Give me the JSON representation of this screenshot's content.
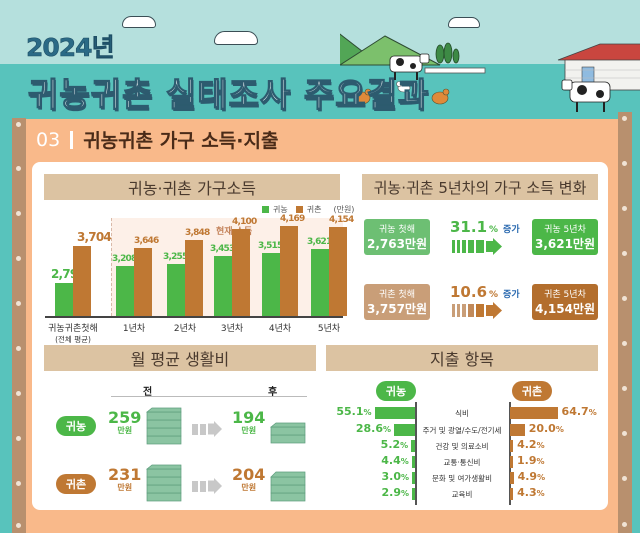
{
  "header": {
    "year": "2024년",
    "title": "귀농귀촌 실태조사 주요결과"
  },
  "section": {
    "number": "03",
    "title": "귀농귀촌 가구 소득·지출"
  },
  "colors": {
    "farm": "#4cb748",
    "rural": "#bf7833",
    "farm_light": "#6dbf73",
    "rural_light": "#c99e78",
    "rural_dark": "#b36e2d"
  },
  "income_panel": {
    "title": "귀농·귀촌 가구소득",
    "legend": {
      "farm": "귀농",
      "rural": "귀촌",
      "unit": "(만원)"
    },
    "current_label": "현재 소득",
    "first_year_label": "귀농귀촌첫해",
    "first_year_sub": "(전체 평균)"
  },
  "chart_data": {
    "type": "bar",
    "title": "귀농·귀촌 가구소득",
    "unit": "만원",
    "categories": [
      "귀농귀촌첫해 (전체 평균)",
      "1년차",
      "2년차",
      "3년차",
      "4년차",
      "5년차"
    ],
    "series": [
      {
        "name": "귀농",
        "values": [
          2796,
          3208,
          3255,
          3453,
          3515,
          3621
        ]
      },
      {
        "name": "귀촌",
        "values": [
          3704,
          3646,
          3848,
          4100,
          4169,
          4154
        ]
      }
    ],
    "value_labels": {
      "귀농": [
        "2,796",
        "3,208",
        "3,255",
        "3,453",
        "3,515",
        "3,621"
      ],
      "귀촌": [
        "3,704",
        "3,646",
        "3,848",
        "4,100",
        "4,169",
        "4,154"
      ]
    },
    "legend_position": "top-right",
    "annotation": "현재 소득",
    "ylim": [
      2000,
      4300
    ],
    "grid": false
  },
  "change_panel": {
    "title": "귀농·귀촌 5년차의 가구 소득 변화",
    "farm": {
      "from_label": "귀농 첫해",
      "from_value": "2,763만원",
      "pct": "31.1",
      "pct_sign": "%",
      "inc": "증가",
      "to_label": "귀농 5년차",
      "to_value": "3,621만원"
    },
    "rural": {
      "from_label": "귀촌 첫해",
      "from_value": "3,757만원",
      "pct": "10.6",
      "pct_sign": "%",
      "inc": "증가",
      "to_label": "귀촌 5년차",
      "to_value": "4,154만원"
    }
  },
  "living_panel": {
    "title": "월 평균 생활비",
    "before": "전",
    "after": "후",
    "unit": "만원",
    "rows": [
      {
        "label": "귀농",
        "before": "259",
        "after": "194"
      },
      {
        "label": "귀촌",
        "before": "231",
        "after": "204"
      }
    ]
  },
  "expense_panel": {
    "title": "지출 항목",
    "farm_label": "귀농",
    "rural_label": "귀촌",
    "items": [
      {
        "label": "식비",
        "farm": 55.1,
        "farm_text": "55.1",
        "rural": 64.7,
        "rural_text": "64.7"
      },
      {
        "label": "주거 및 광열/수도/전기세",
        "farm": 28.6,
        "farm_text": "28.6",
        "rural": 20.0,
        "rural_text": "20.0"
      },
      {
        "label": "건강 및 의료소비",
        "farm": 5.2,
        "farm_text": "5.2",
        "rural": 4.2,
        "rural_text": "4.2"
      },
      {
        "label": "교통·통신비",
        "farm": 4.4,
        "farm_text": "4.4",
        "rural": 1.9,
        "rural_text": "1.9"
      },
      {
        "label": "문화 및 여가생활비",
        "farm": 3.0,
        "farm_text": "3.0",
        "rural": 4.9,
        "rural_text": "4.9"
      },
      {
        "label": "교육비",
        "farm": 2.9,
        "farm_text": "2.9",
        "rural": 4.3,
        "rural_text": "4.3"
      }
    ],
    "pct_sign": "%"
  }
}
